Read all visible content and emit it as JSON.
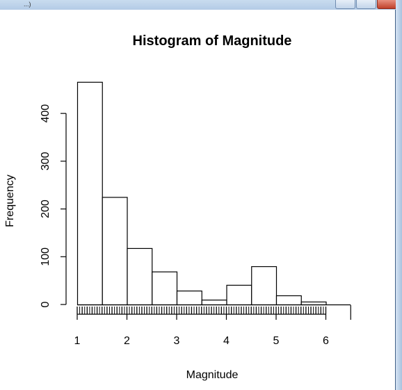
{
  "window": {
    "title_fragment": "...)"
  },
  "chart_data": {
    "type": "bar",
    "title": "Histogram of Magnitude",
    "xlabel": "Magnitude",
    "ylabel": "Frequency",
    "bins": [
      {
        "from": 1.0,
        "to": 1.5,
        "count": 466
      },
      {
        "from": 1.5,
        "to": 2.0,
        "count": 225
      },
      {
        "from": 2.0,
        "to": 2.5,
        "count": 118
      },
      {
        "from": 2.5,
        "to": 3.0,
        "count": 69
      },
      {
        "from": 3.0,
        "to": 3.5,
        "count": 29
      },
      {
        "from": 3.5,
        "to": 4.0,
        "count": 10
      },
      {
        "from": 4.0,
        "to": 4.5,
        "count": 41
      },
      {
        "from": 4.5,
        "to": 5.0,
        "count": 80
      },
      {
        "from": 5.0,
        "to": 5.5,
        "count": 19
      },
      {
        "from": 5.5,
        "to": 6.0,
        "count": 6
      },
      {
        "from": 6.0,
        "to": 6.5,
        "count": 0
      }
    ],
    "x_ticks": [
      1,
      2,
      3,
      4,
      5,
      6
    ],
    "y_ticks": [
      0,
      100,
      200,
      300,
      400
    ],
    "xlim": [
      1,
      6.5
    ],
    "ylim": [
      0,
      466
    ],
    "rug": true,
    "grid": false,
    "colors": {
      "bar_fill": "#ffffff",
      "bar_stroke": "#000000"
    }
  }
}
